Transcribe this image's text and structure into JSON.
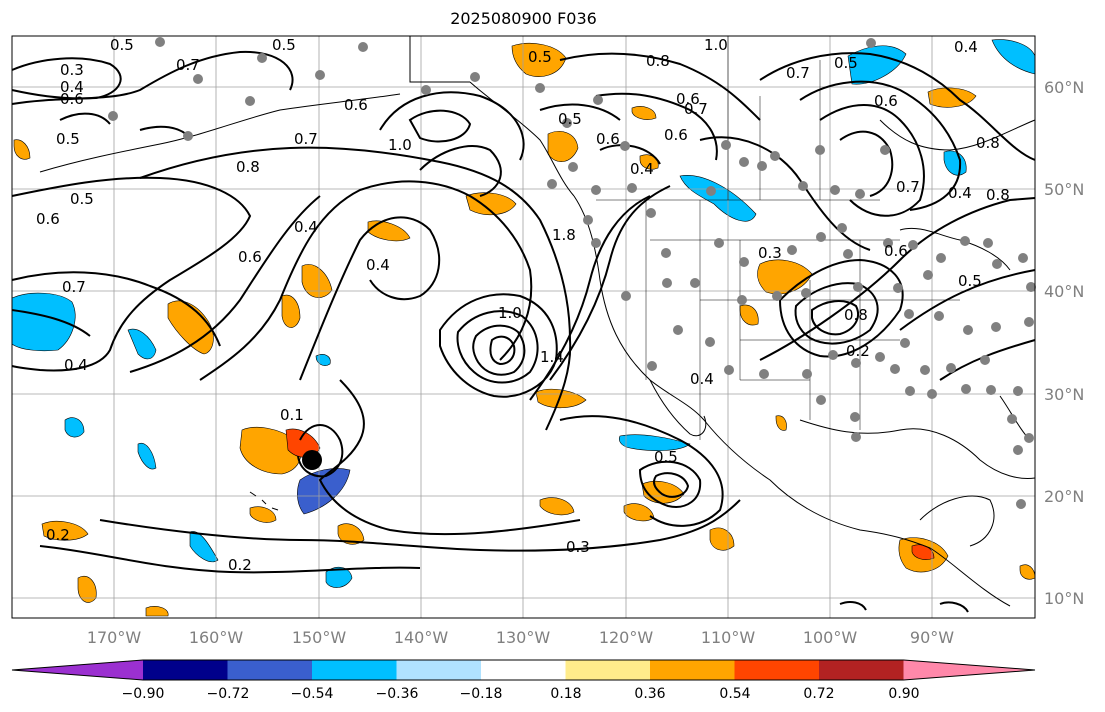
{
  "title": "2025080900 F036",
  "lon_labels": [
    "170°W",
    "160°W",
    "150°W",
    "140°W",
    "130°W",
    "120°W",
    "110°W",
    "100°W",
    "90°W"
  ],
  "lat_labels": [
    "60°N",
    "50°N",
    "40°N",
    "30°N",
    "20°N",
    "10°N"
  ],
  "colorbar": {
    "ticks": [
      "−0.90",
      "−0.72",
      "−0.54",
      "−0.36",
      "−0.18",
      "0.18",
      "0.36",
      "0.54",
      "0.72",
      "0.90"
    ],
    "colors": [
      "#9b30d0",
      "#00008b",
      "#3a5fcd",
      "#00bfff",
      "#b0e2ff",
      "#ffffff",
      "#ffec8b",
      "#ffa500",
      "#ff4500",
      "#b22222",
      "#ff88aa"
    ]
  },
  "contour_labels": [
    "0.3",
    "0.4",
    "0.6",
    "0.7",
    "0.5",
    "0.5",
    "0.6",
    "0.5",
    "0.5",
    "0.7",
    "0.8",
    "0.6",
    "0.7",
    "0.6",
    "1.0",
    "0.7",
    "0.5",
    "0.8",
    "0.4",
    "0.6",
    "0.5",
    "1.0",
    "0.7",
    "0.6",
    "0.8",
    "0.5",
    "0.6",
    "0.4",
    "0.4",
    "0.6",
    "0.4",
    "1.8",
    "0.4",
    "0.8",
    "0.3",
    "0.4",
    "0.7",
    "0.6",
    "0.8",
    "0.5",
    "0.4",
    "1.0",
    "1.4",
    "0.2",
    "0.5",
    "0.2",
    "0.3",
    "0.2",
    "0.1"
  ]
}
